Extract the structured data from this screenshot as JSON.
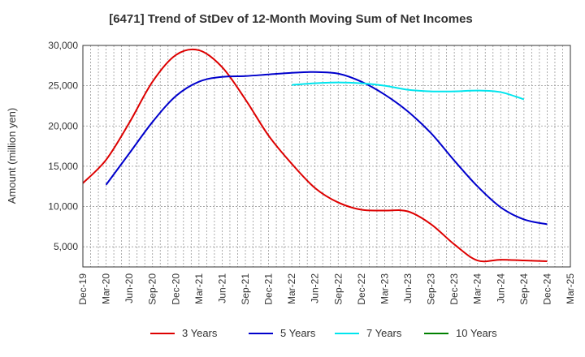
{
  "chart_data": {
    "type": "line",
    "title": "[6471]  Trend of StDev of 12-Month Moving Sum of Net Incomes",
    "xlabel": "",
    "ylabel": "Amount (million yen)",
    "ylim": [
      2500,
      30000
    ],
    "yticks": [
      5000,
      10000,
      15000,
      20000,
      25000,
      30000
    ],
    "ytick_labels": [
      "5,000",
      "10,000",
      "15,000",
      "20,000",
      "25,000",
      "30,000"
    ],
    "xtick_labels": [
      "Dec-19",
      "Mar-20",
      "Jun-20",
      "Sep-20",
      "Dec-20",
      "Mar-21",
      "Jun-21",
      "Sep-21",
      "Dec-21",
      "Mar-22",
      "Jun-22",
      "Sep-22",
      "Dec-22",
      "Mar-23",
      "Jun-23",
      "Sep-23",
      "Dec-23",
      "Mar-24",
      "Jun-24",
      "Sep-24",
      "Dec-24",
      "Mar-25"
    ],
    "grid": true,
    "legend_position": "bottom",
    "series": [
      {
        "name": "3 Years",
        "color": "#dd0000",
        "start_index": 0,
        "values": [
          12900,
          15800,
          20400,
          25500,
          28800,
          29400,
          27300,
          23300,
          18800,
          15300,
          12300,
          10500,
          9600,
          9500,
          9400,
          7800,
          5300,
          3300,
          3400,
          3300,
          3200
        ]
      },
      {
        "name": "5 Years",
        "color": "#0000cc",
        "start_index": 1,
        "values": [
          12700,
          16600,
          20500,
          23700,
          25500,
          26100,
          26200,
          26400,
          26600,
          26700,
          26500,
          25500,
          23900,
          21800,
          19100,
          15700,
          12500,
          9900,
          8400,
          7800
        ]
      },
      {
        "name": "7 Years",
        "color": "#00e5ee",
        "start_index": 9,
        "values": [
          25100,
          25300,
          25400,
          25300,
          25000,
          24500,
          24300,
          24300,
          24400,
          24200,
          23300
        ]
      },
      {
        "name": "10 Years",
        "color": "#008000",
        "start_index": 0,
        "values": []
      }
    ]
  }
}
